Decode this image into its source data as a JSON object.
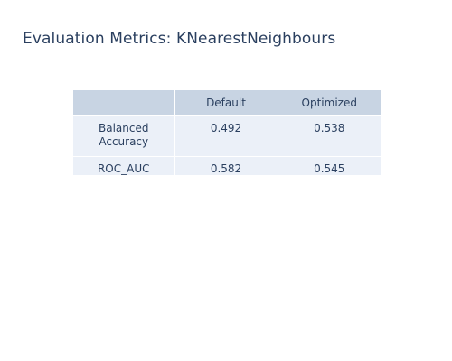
{
  "title": "Evaluation Metrics: KNearestNeighbours",
  "chart_data": {
    "type": "table",
    "title": "Evaluation Metrics: KNearestNeighbours",
    "columns": [
      "",
      "Default",
      "Optimized"
    ],
    "rows": [
      {
        "metric": "Balanced Accuracy",
        "default": "0.492",
        "optimized": "0.538"
      },
      {
        "metric": "ROC_AUC",
        "default": "0.582",
        "optimized": "0.545"
      }
    ]
  },
  "colors": {
    "header_fill": "#c8d4e3",
    "cell_fill": "#ebf0f8",
    "text": "#2a3f5f",
    "line": "#ffffff"
  }
}
